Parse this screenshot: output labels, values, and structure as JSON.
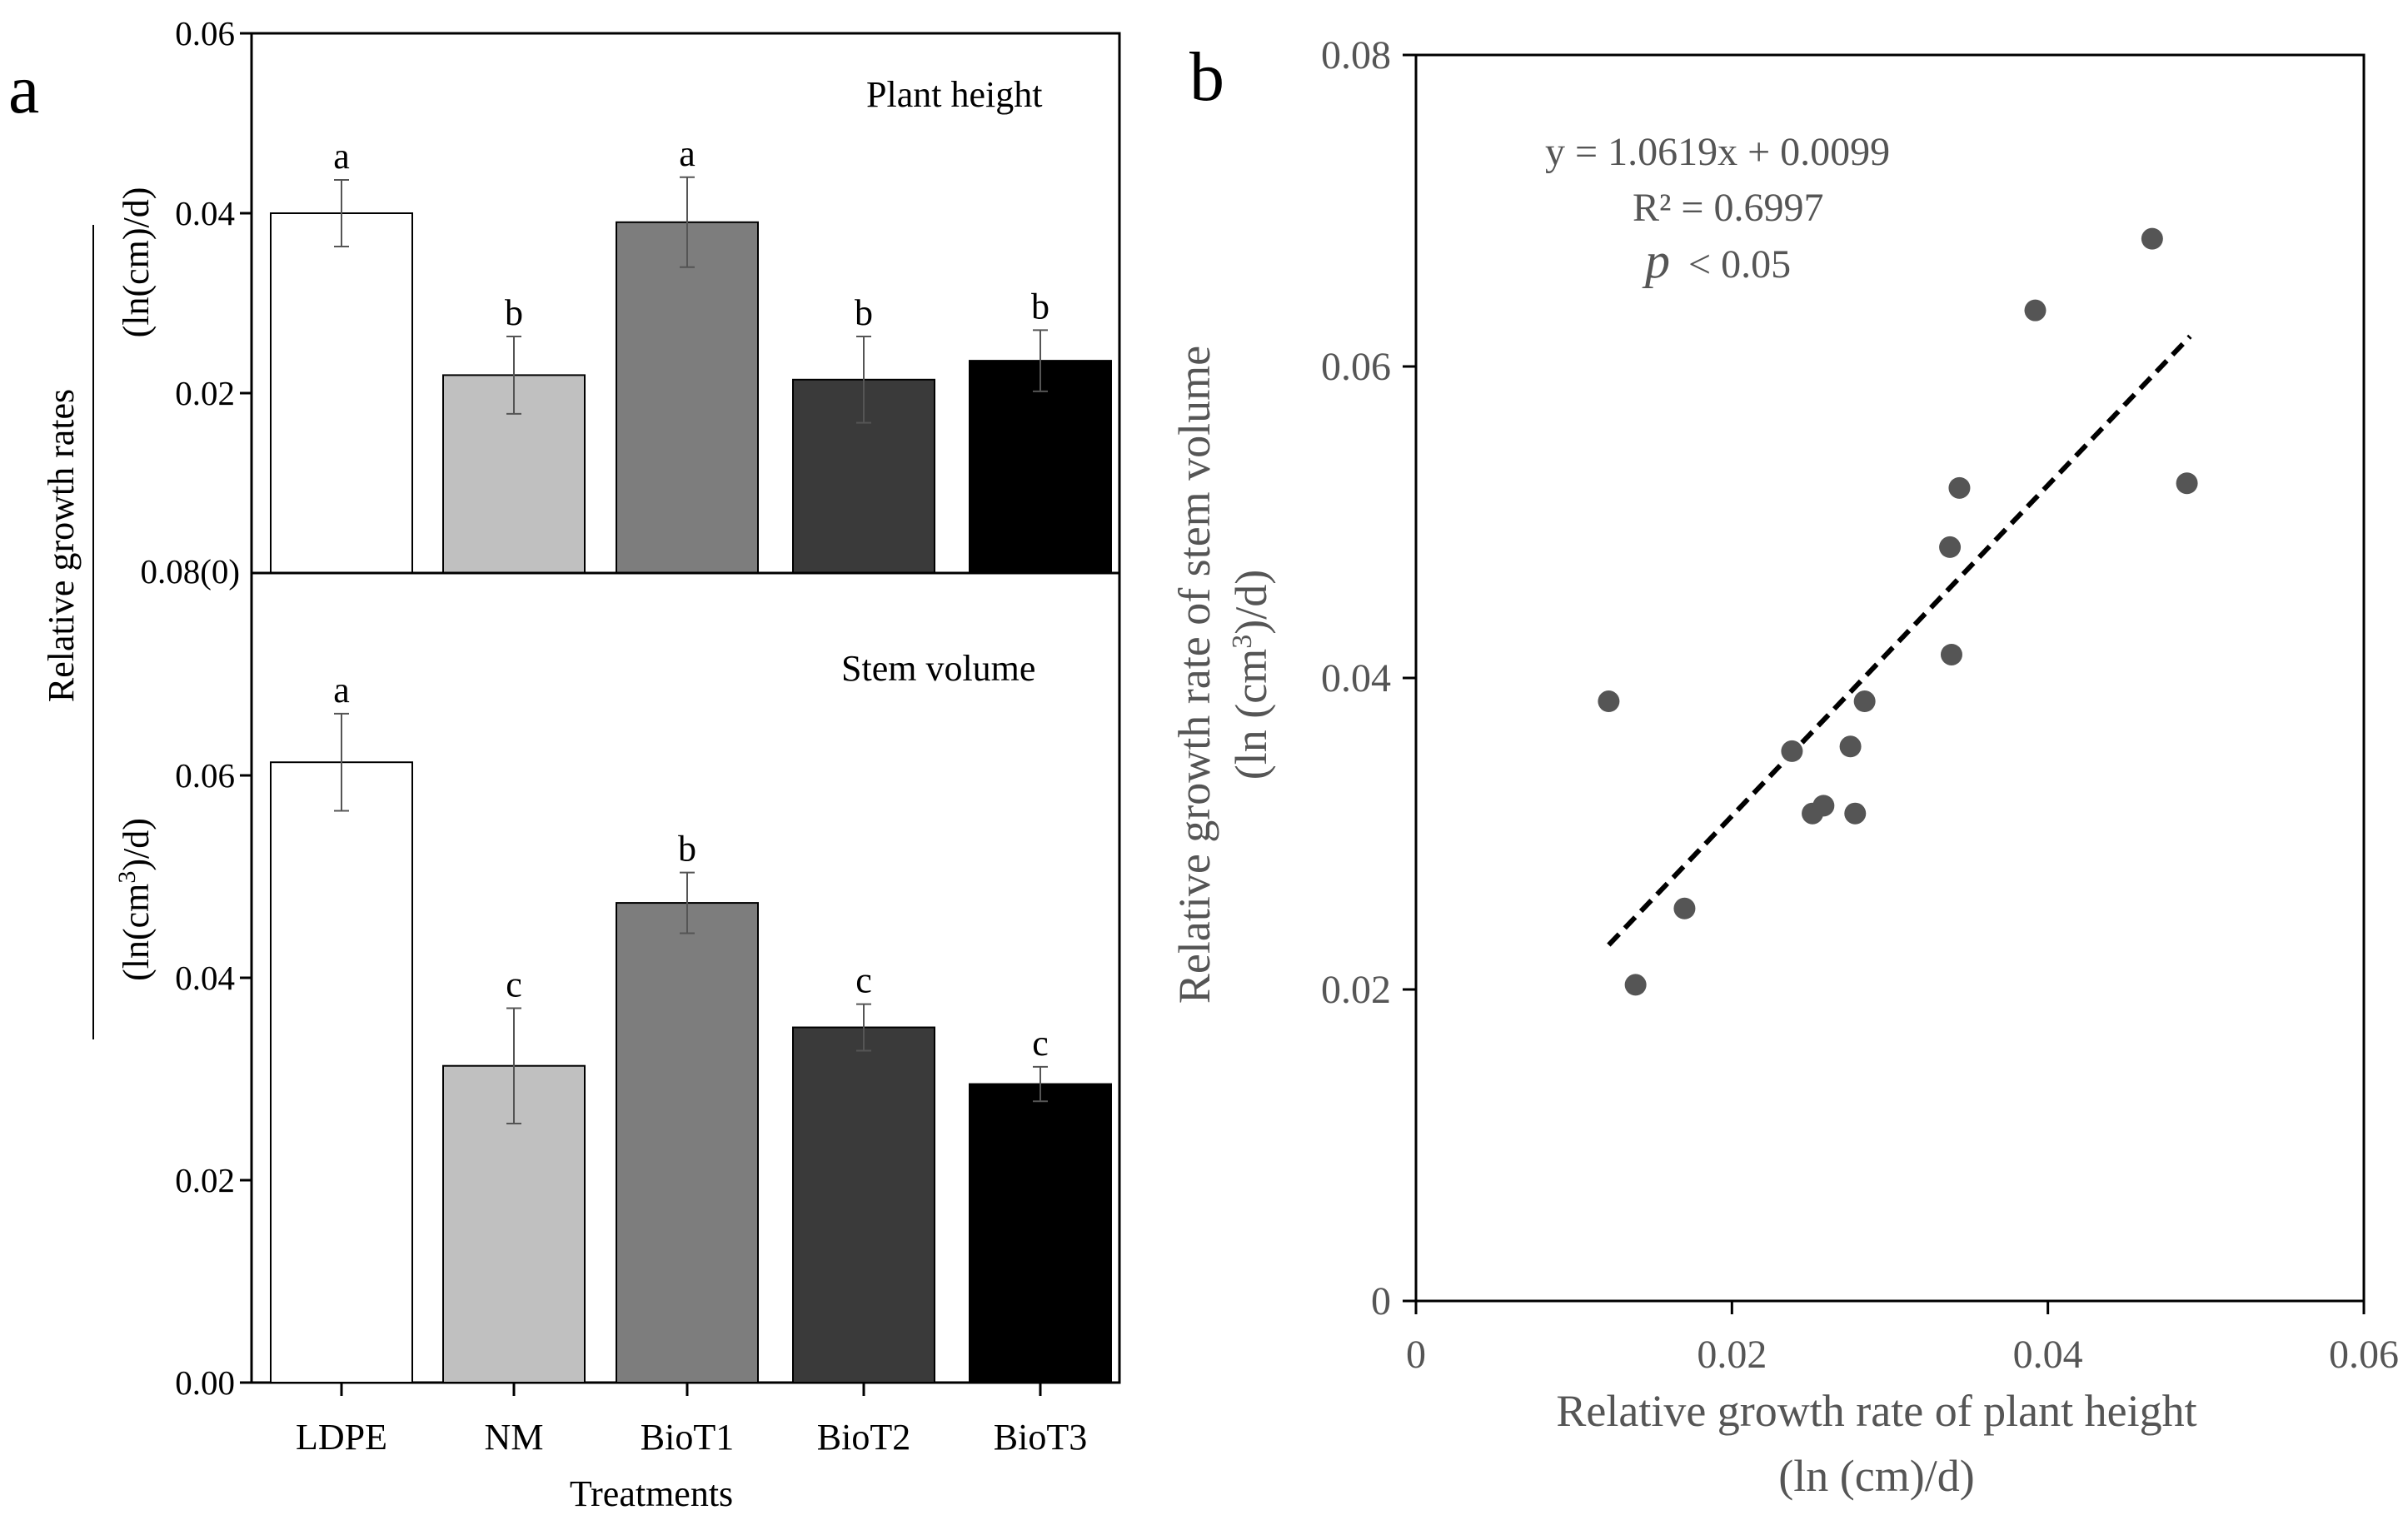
{
  "chart_data": [
    {
      "panel": "a",
      "type": "bar",
      "categories": [
        "LDPE",
        "NM",
        "BioT1",
        "BioT2",
        "BioT3"
      ],
      "xlabel": "Treatments",
      "ylabel_shared": "Relative growth rates",
      "shared_break_label": "0.08(0)",
      "colors": [
        "#ffffff",
        "#c0c0c0",
        "#7d7d7d",
        "#3a3a3a",
        "#000000"
      ],
      "subplots": [
        {
          "name": "plant-height",
          "title": "Plant height",
          "ylabel": "(ln(cm)/d)",
          "ylim": [
            0,
            0.06
          ],
          "ticks": [
            "0.02",
            "0.04",
            "0.06"
          ],
          "tick_values": [
            0.02,
            0.04,
            0.06
          ],
          "values": [
            0.04,
            0.022,
            0.039,
            0.0215,
            0.0236
          ],
          "errors": [
            0.0037,
            0.0043,
            0.005,
            0.0048,
            0.0034
          ],
          "letters": [
            "a",
            "b",
            "a",
            "b",
            "b"
          ]
        },
        {
          "name": "stem-volume",
          "title": "Stem volume",
          "ylabel_pre": "(ln(cm",
          "ylabel_sup": "3",
          "ylabel_post": ")/d)",
          "ylim": [
            0,
            0.08
          ],
          "ticks": [
            "0.00",
            "0.02",
            "0.04",
            "0.06"
          ],
          "tick_values": [
            0.0,
            0.02,
            0.04,
            0.06
          ],
          "values": [
            0.0613,
            0.0313,
            0.0474,
            0.0351,
            0.0295
          ],
          "errors": [
            0.0048,
            0.0057,
            0.003,
            0.0023,
            0.0017
          ],
          "letters": [
            "a",
            "c",
            "b",
            "c",
            "c"
          ]
        }
      ]
    },
    {
      "panel": "b",
      "type": "scatter",
      "xlabel": "Relative growth rate of plant height",
      "xlabel_units": "(ln (cm)/d)",
      "ylabel": "Relative  growth rate of stem volume",
      "ylabel_units_pre": "(ln (cm",
      "ylabel_units_sup": "3",
      "ylabel_units_post": ")/d)",
      "xlim": [
        0,
        0.06
      ],
      "ylim": [
        0,
        0.08
      ],
      "xticks": [
        "0",
        "0.02",
        "0.04",
        "0.06"
      ],
      "xtick_values": [
        0,
        0.02,
        0.04,
        0.06
      ],
      "yticks": [
        "0",
        "0.02",
        "0.04",
        "0.06",
        "0.08"
      ],
      "ytick_values": [
        0,
        0.02,
        0.04,
        0.06,
        0.08
      ],
      "x": [
        0.0122,
        0.0139,
        0.017,
        0.0238,
        0.0251,
        0.0258,
        0.0275,
        0.0278,
        0.0284,
        0.0338,
        0.0339,
        0.0344,
        0.0392,
        0.0466,
        0.0488
      ],
      "y": [
        0.0385,
        0.0203,
        0.0252,
        0.0353,
        0.0313,
        0.0318,
        0.0356,
        0.0313,
        0.0385,
        0.0484,
        0.0415,
        0.0522,
        0.0636,
        0.0682,
        0.0525
      ],
      "fit": {
        "slope": 1.0619,
        "intercept": 0.0099,
        "x_range": [
          0.0122,
          0.049
        ]
      },
      "equation": "y = 1.0619x + 0.0099",
      "r2": "R² = 0.6997",
      "p_symbol": "p",
      "p_text": "< 0.05",
      "point_color": "#555555"
    }
  ],
  "labels": {
    "panel_a": "a",
    "panel_b": "b"
  }
}
